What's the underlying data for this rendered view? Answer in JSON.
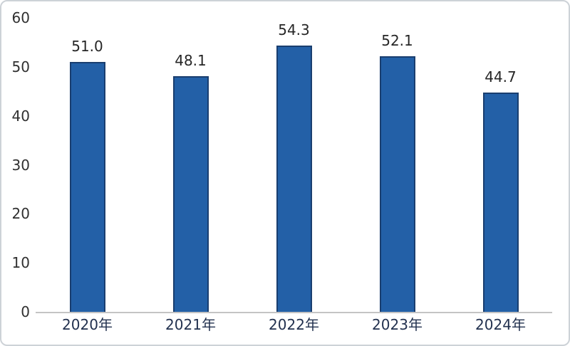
{
  "figure": {
    "background": "#ffffff",
    "border_color": "#cdd2d7"
  },
  "chart_data": {
    "type": "bar",
    "title": "",
    "xlabel": "",
    "ylabel": "",
    "categories": [
      "2020年",
      "2021年",
      "2022年",
      "2023年",
      "2024年"
    ],
    "values": [
      51.0,
      48.1,
      54.3,
      52.1,
      44.7
    ],
    "value_labels": [
      "51.0",
      "48.1",
      "54.3",
      "52.1",
      "44.7"
    ],
    "ylim": [
      0,
      60
    ],
    "y_ticks": [
      0,
      10,
      20,
      30,
      40,
      50,
      60
    ],
    "grid": false,
    "legend": "none",
    "colors": {
      "bar_fill": "#2360a7",
      "bar_border": "#1a3e6f",
      "axis_line": "#c4c4c4",
      "y_tick_color": "#303030",
      "x_tick_color": "#22314f",
      "data_label_color": "#262626"
    }
  }
}
